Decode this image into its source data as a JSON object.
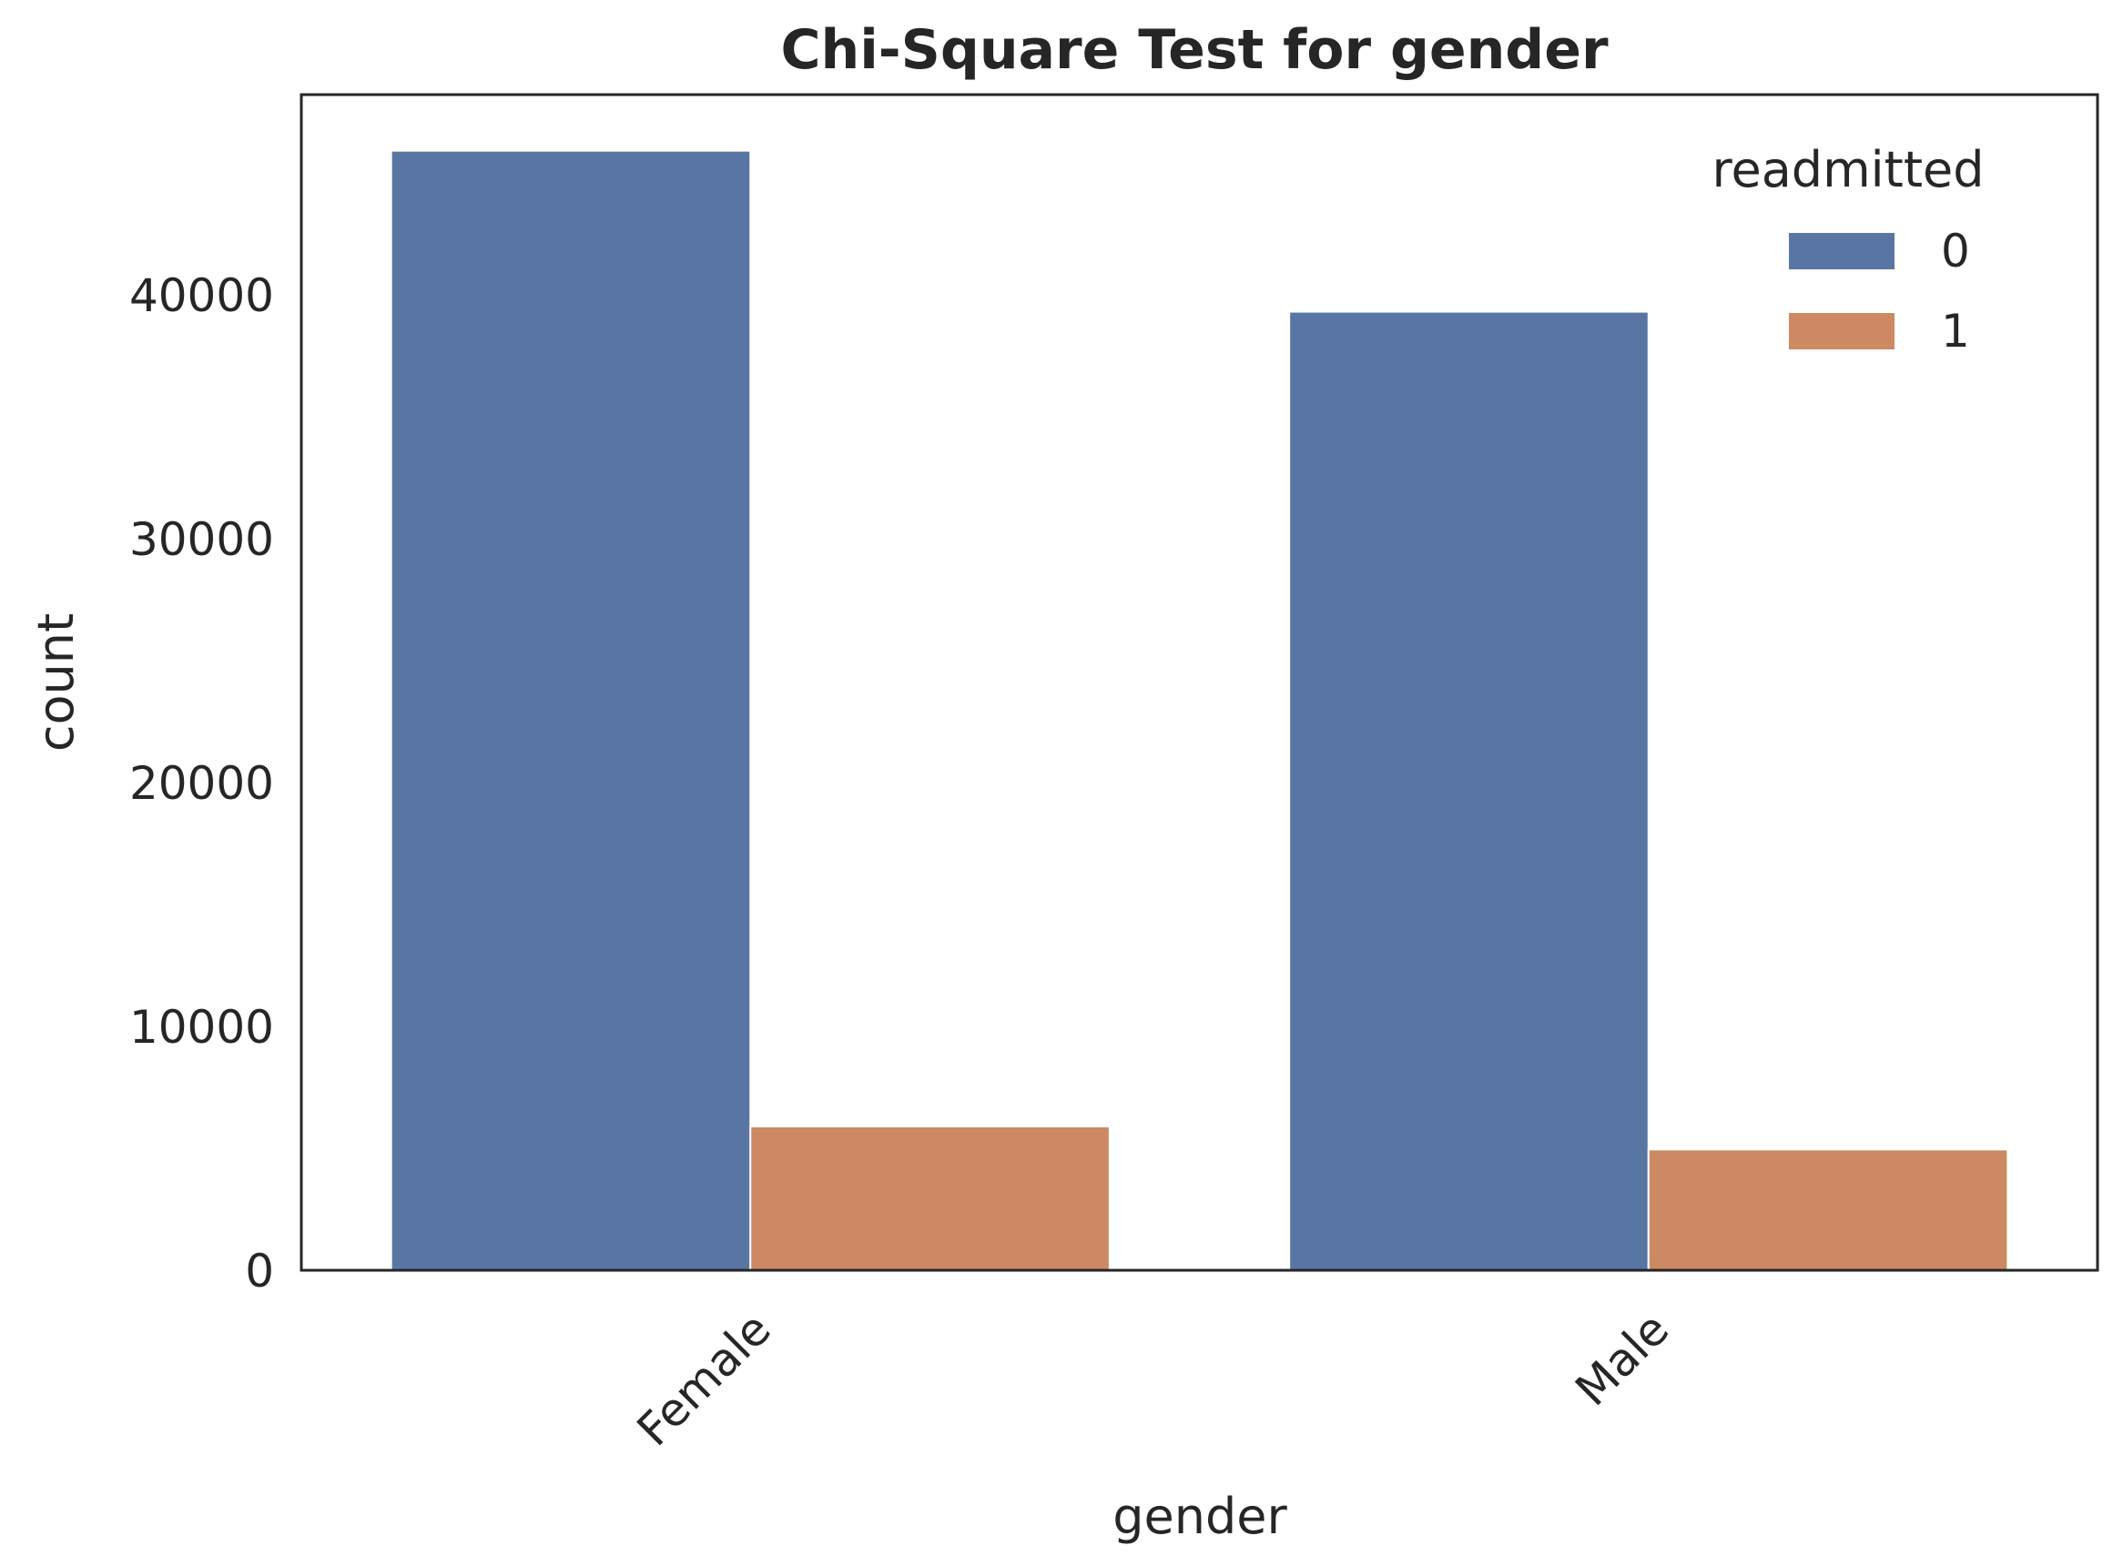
{
  "chart_data": {
    "type": "bar",
    "title": "Chi-Square Test for gender",
    "xlabel": "gender",
    "ylabel": "count",
    "categories": [
      "Female",
      "Male"
    ],
    "series": [
      {
        "name": "0",
        "values": [
          45900,
          39300
        ],
        "color": "#5975a4"
      },
      {
        "name": "1",
        "values": [
          5900,
          4950
        ],
        "color": "#cc8963"
      }
    ],
    "legend": {
      "title": "readmitted",
      "position": "top-right"
    },
    "ylim": [
      0,
      48200
    ],
    "yticks": [
      0,
      10000,
      20000,
      30000,
      40000
    ],
    "ytick_labels": [
      "0",
      "10000",
      "20000",
      "30000",
      "40000"
    ],
    "grid": false
  }
}
